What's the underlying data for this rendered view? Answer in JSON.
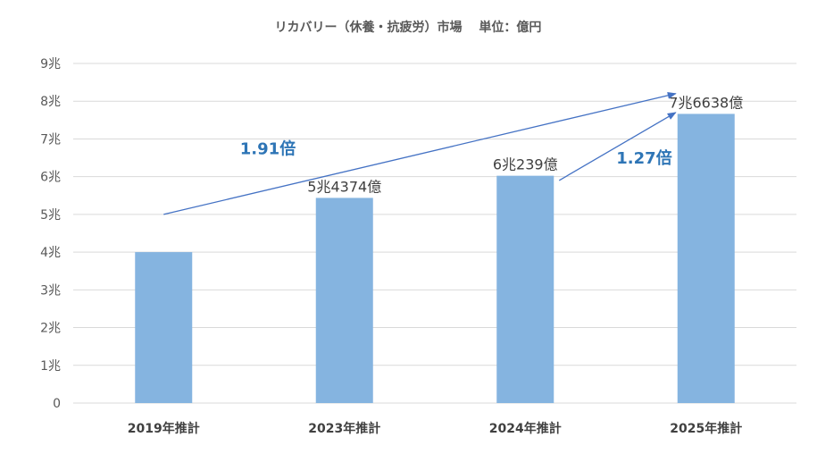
{
  "chart_data": {
    "type": "bar",
    "title": "リカバリー（休養・抗疲労）市場　 単位：億円",
    "categories": [
      "2019年推計",
      "2023年推計",
      "2024年推計",
      "2025年推計"
    ],
    "values": [
      40000,
      54374,
      60239,
      76638
    ],
    "data_labels": [
      "",
      "5兆4374億",
      "6兆239億",
      "7兆6638億"
    ],
    "ylim": [
      0,
      90000
    ],
    "yticks": [
      {
        "value": 0,
        "label": "0"
      },
      {
        "value": 10000,
        "label": "1兆"
      },
      {
        "value": 20000,
        "label": "2兆"
      },
      {
        "value": 30000,
        "label": "3兆"
      },
      {
        "value": 40000,
        "label": "4兆"
      },
      {
        "value": 50000,
        "label": "5兆"
      },
      {
        "value": 60000,
        "label": "6兆"
      },
      {
        "value": 70000,
        "label": "7兆"
      },
      {
        "value": 80000,
        "label": "8兆"
      },
      {
        "value": 90000,
        "label": "9兆"
      }
    ],
    "grid": true,
    "bar_color": "#85B4E0",
    "annotations": [
      {
        "text": "1.91倍",
        "from_category": 0,
        "to_category": 3,
        "from_value": 50000,
        "to_value": 82000,
        "color": "#2E75B6"
      },
      {
        "text": "1.27倍",
        "from_category": 2,
        "to_category": 3,
        "from_value": 59000,
        "to_value": 77000,
        "color": "#2E75B6"
      }
    ]
  }
}
